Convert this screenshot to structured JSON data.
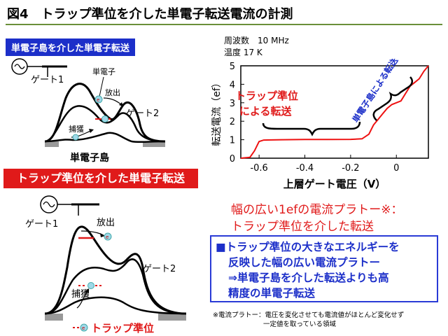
{
  "title": "図4　トラップ準位を介した単電子転送電流の計測",
  "top_diagram": {
    "label": "単電子島を介した単電子転送",
    "gate1": "ゲート1",
    "electron_label": "単電子",
    "emit": "放出",
    "gate2": "ゲート2",
    "capture": "捕獲",
    "island": "単電子島",
    "electron": "e"
  },
  "bottom_diagram": {
    "label": "トラップ準位を介した単電子転送",
    "gate1": "ゲート1",
    "emit": "放出",
    "gate2": "ゲート2",
    "capture": "捕獲",
    "trap": "トラップ準位",
    "electron": "e"
  },
  "chart_conditions": {
    "frequency": "周波数　10 MHz",
    "temperature": "温度 17 K"
  },
  "chart_annotations": {
    "trap_1": "トラップ準位",
    "trap_2": "による転送",
    "island": "単電子島による転送"
  },
  "chart_data": {
    "type": "line",
    "xlabel": "上層ゲート電圧（V）",
    "ylabel": "転送電流（ef）",
    "xlim": [
      -0.68,
      0.14
    ],
    "ylim": [
      0,
      5
    ],
    "xticks": [
      "-0.6",
      "-0.4",
      "-0.2",
      "0"
    ],
    "xtick_values": [
      -0.6,
      -0.4,
      -0.2,
      0
    ],
    "yticks": [
      "0",
      "1",
      "2",
      "3",
      "4",
      "5"
    ],
    "ytick_values": [
      0,
      1,
      2,
      3,
      4,
      5
    ],
    "series": [
      {
        "color": "#ee1111",
        "x": [
          -0.68,
          -0.64,
          -0.62,
          -0.6,
          -0.58,
          -0.5,
          -0.4,
          -0.3,
          -0.2,
          -0.15,
          -0.12,
          -0.1,
          -0.08,
          -0.06,
          -0.04,
          -0.02,
          0.0,
          0.02,
          0.04,
          0.06,
          0.08,
          0.1,
          0.12,
          0.14
        ],
        "y": [
          0.0,
          0.05,
          0.4,
          0.9,
          0.98,
          1.0,
          1.01,
          1.01,
          1.02,
          1.05,
          1.3,
          1.8,
          2.1,
          2.4,
          2.7,
          2.9,
          3.0,
          3.1,
          3.5,
          3.9,
          4.1,
          4.3,
          4.7,
          5.0
        ]
      }
    ]
  },
  "note": {
    "line1": "幅の広い1efの電流プラトー※：",
    "line2": "トラップ準位を介した転送"
  },
  "box": {
    "bullet": "■",
    "line1": "トラップ準位の大きなエネルギーを",
    "line2": "反映した幅の広い電流プラトー",
    "line3": "⇒単電子島を介した転送よりも高",
    "line4": "精度の単電子転送"
  },
  "footnote": {
    "line1": "※電流プラトー：電圧を変化させても電流値がほとんど変化せず",
    "line2": "一定値を取っている領域"
  }
}
